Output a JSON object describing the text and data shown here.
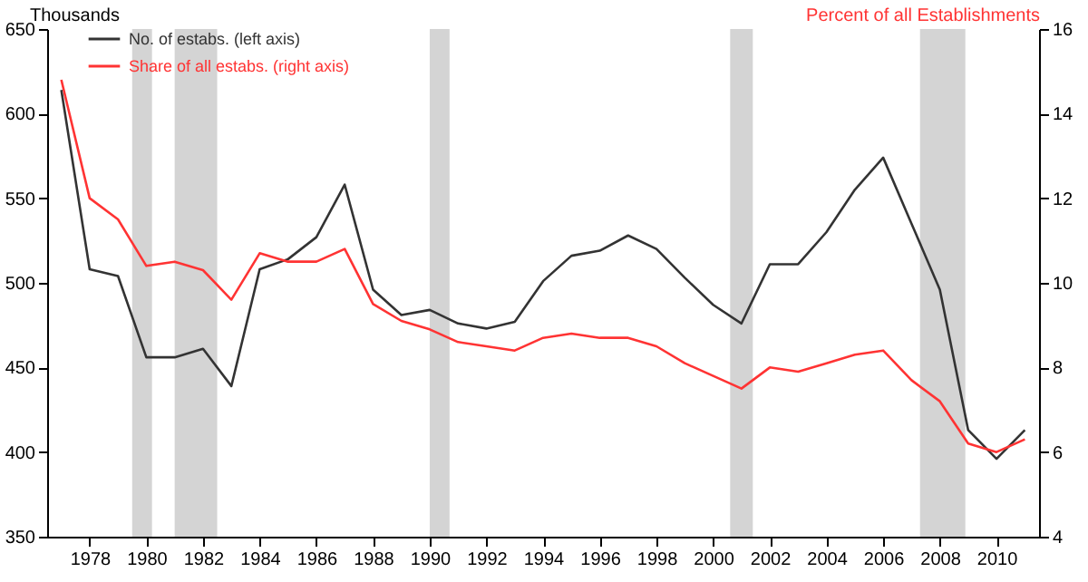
{
  "chart_data": {
    "type": "line",
    "ylabel": "Thousands",
    "y2label": "Percent of all Establishments",
    "x": [
      1977,
      1978,
      1979,
      1980,
      1981,
      1982,
      1983,
      1984,
      1985,
      1986,
      1987,
      1988,
      1989,
      1990,
      1991,
      1992,
      1993,
      1994,
      1995,
      1996,
      1997,
      1998,
      1999,
      2000,
      2001,
      2002,
      2003,
      2004,
      2005,
      2006,
      2007,
      2008,
      2009,
      2010,
      2011
    ],
    "series": [
      {
        "name": "No. of estabs. (left axis)",
        "color": "#333333",
        "axis": "y",
        "values": [
          614,
          508,
          504,
          456,
          456,
          461,
          439,
          508,
          514,
          527,
          558,
          496,
          481,
          484,
          476,
          473,
          477,
          501,
          516,
          519,
          528,
          520,
          503,
          487,
          476,
          511,
          511,
          530,
          555,
          574,
          535,
          496,
          413,
          396,
          413
        ]
      },
      {
        "name": "Share of all estabs. (right axis)",
        "color": "#ff3333",
        "axis": "y2",
        "values": [
          14.8,
          12.0,
          11.5,
          10.4,
          10.5,
          10.3,
          9.6,
          10.7,
          10.5,
          10.5,
          10.8,
          9.5,
          9.1,
          8.9,
          8.6,
          8.5,
          8.4,
          8.7,
          8.8,
          8.7,
          8.7,
          8.5,
          8.1,
          7.8,
          7.5,
          8.0,
          7.9,
          8.1,
          8.3,
          8.4,
          7.7,
          7.2,
          6.2,
          6.0,
          6.3
        ]
      }
    ],
    "xlim": [
      1976.5,
      2011.5
    ],
    "xticks": [
      1978,
      1980,
      1982,
      1984,
      1986,
      1988,
      1990,
      1992,
      1994,
      1996,
      1998,
      2000,
      2002,
      2004,
      2006,
      2008,
      2010
    ],
    "ylim": [
      350,
      650
    ],
    "yticks": [
      350,
      400,
      450,
      500,
      550,
      600,
      650
    ],
    "y2lim": [
      4,
      16
    ],
    "y2ticks": [
      4,
      6,
      8,
      10,
      12,
      14,
      16
    ],
    "bands": [
      {
        "axis": "x",
        "from": 1979.5,
        "to": 1980.2,
        "color": "#cccccc"
      },
      {
        "axis": "x",
        "from": 1981.0,
        "to": 1982.5,
        "color": "#cccccc"
      },
      {
        "axis": "x",
        "from": 1990.0,
        "to": 1990.7,
        "color": "#cccccc"
      },
      {
        "axis": "x",
        "from": 2000.6,
        "to": 2001.4,
        "color": "#cccccc"
      },
      {
        "axis": "x",
        "from": 2007.3,
        "to": 2008.9,
        "color": "#cccccc"
      }
    ],
    "legend": "top left",
    "grid": false,
    "marker": "none"
  }
}
